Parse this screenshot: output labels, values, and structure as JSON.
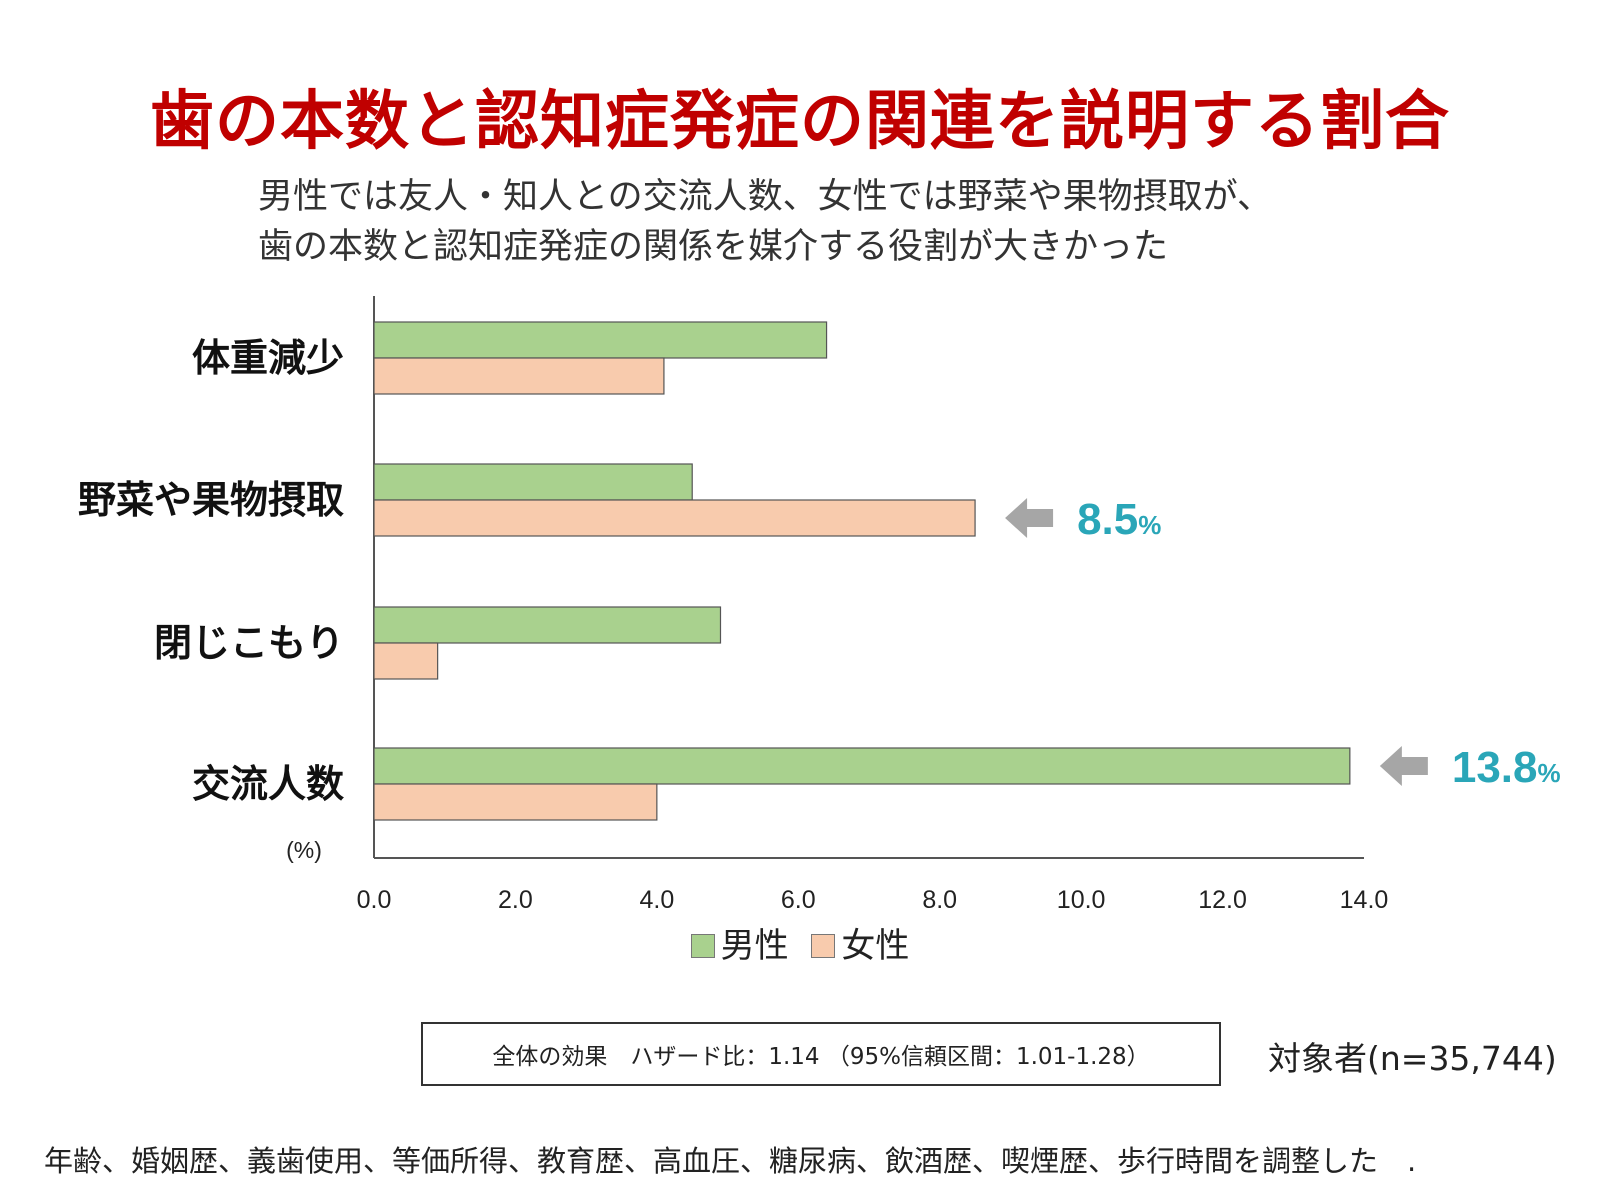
{
  "title": "歯の本数と認知症発症の関連を説明する割合",
  "subtitle": {
    "line1": "男性では友人・知人との交流人数、女性では野菜や果物摂取が、",
    "line2": "歯の本数と認知症発症の関係を媒介する役割が大きかった"
  },
  "chart_data": {
    "type": "bar",
    "orientation": "horizontal",
    "categories": [
      "体重減少",
      "野菜や果物摂取",
      "閉じこもり",
      "交流人数"
    ],
    "series": [
      {
        "name": "男性",
        "values": [
          6.4,
          4.5,
          4.9,
          13.8
        ],
        "color": "#a9d18e"
      },
      {
        "name": "女性",
        "values": [
          4.1,
          8.5,
          0.9,
          4.0
        ],
        "color": "#f8cbad"
      }
    ],
    "xlim": [
      0,
      14
    ],
    "ticks": [
      "0.0",
      "2.0",
      "4.0",
      "6.0",
      "8.0",
      "10.0",
      "12.0",
      "14.0"
    ],
    "unit_label": "(%)",
    "grid": false,
    "legend": "bottom",
    "annotations": [
      {
        "category": "野菜や果物摂取",
        "series": "女性",
        "value": "8.5",
        "suffix": "%"
      },
      {
        "category": "交流人数",
        "series": "男性",
        "value": "13.8",
        "suffix": "%"
      }
    ],
    "annotation_color": "#2aa6b8",
    "arrow_color": "#a6a6a6"
  },
  "effect_box": "全体の効果　ハザード比：1.14 （95%信頼区間：1.01-1.28）",
  "sample_size": "対象者(n=35,744)",
  "footnote": "年齢、婚姻歴、義歯使用、等価所得、教育歴、高血圧、糖尿病、飲酒歴、喫煙歴、歩行時間を調整した　."
}
